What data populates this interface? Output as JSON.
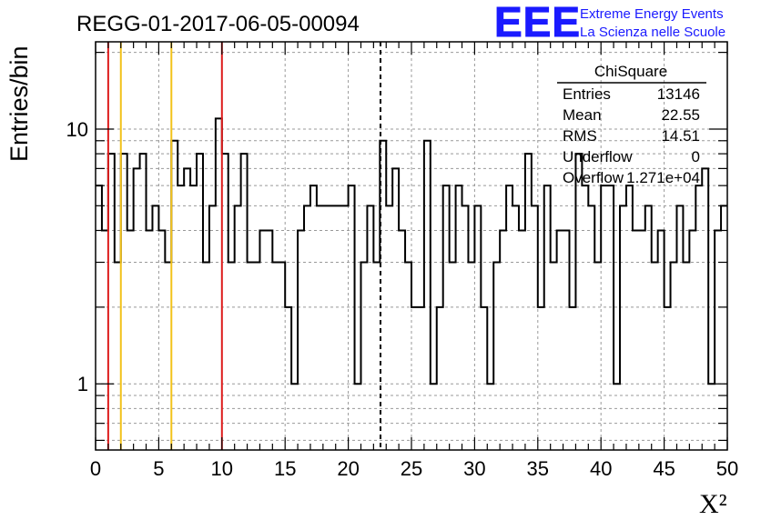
{
  "title": "REGG-01-2017-06-05-00094",
  "logo": {
    "text": "EEE",
    "line1": "Extreme Energy Events",
    "line2": "La Scienza nelle Scuole",
    "color": "#1a1aff"
  },
  "stats_box": {
    "name": "ChiSquare",
    "rows": [
      {
        "label": "Entries",
        "value": "13146"
      },
      {
        "label": "Mean",
        "value": "22.55"
      },
      {
        "label": "RMS",
        "value": "14.51"
      },
      {
        "label": "Underflow",
        "value": "0"
      },
      {
        "label": "Overflow",
        "value": "1.271e+04"
      }
    ]
  },
  "chart_data": {
    "type": "histogram",
    "title": "REGG-01-2017-06-05-00094",
    "xlabel": "X²",
    "ylabel": "Entries/bin",
    "xlim": [
      0,
      50
    ],
    "ylim": [
      0.55,
      22
    ],
    "y_scale": "log",
    "grid": true,
    "x_ticks": [
      "0",
      "5",
      "10",
      "15",
      "20",
      "25",
      "30",
      "35",
      "40",
      "45",
      "50"
    ],
    "y_ticks": [
      {
        "value": 1,
        "label": "1"
      },
      {
        "value": 10,
        "label": "10"
      }
    ],
    "bin_width": 0.5,
    "values": [
      6,
      4,
      8,
      3,
      8,
      4,
      7,
      8,
      4,
      5,
      4,
      3,
      9,
      6,
      7,
      6,
      8,
      3,
      5,
      11,
      8,
      3,
      5,
      8,
      3,
      3,
      4,
      4,
      3,
      3,
      2,
      1,
      4,
      5,
      6,
      5,
      5,
      5,
      5,
      5,
      6,
      1,
      3,
      5,
      3,
      9,
      5,
      7,
      4,
      3,
      2,
      2,
      9,
      1,
      2,
      6,
      3,
      6,
      5,
      3,
      5,
      2,
      1,
      3,
      4,
      6,
      5,
      4,
      8,
      5,
      2,
      6,
      3,
      4,
      4,
      2,
      8,
      6,
      5,
      3,
      6,
      6,
      1,
      5,
      6,
      4,
      4,
      5,
      3,
      4,
      2,
      3,
      5,
      3,
      4,
      6,
      7,
      1,
      4,
      5
    ],
    "vertical_lines": [
      {
        "x": 1,
        "color": "#dd1c1c",
        "style": "solid"
      },
      {
        "x": 2,
        "color": "#f2c21a",
        "style": "solid"
      },
      {
        "x": 6,
        "color": "#f2c21a",
        "style": "solid"
      },
      {
        "x": 10,
        "color": "#dd1c1c",
        "style": "solid"
      },
      {
        "x": 22.55,
        "color": "#000000",
        "style": "dashed"
      }
    ]
  }
}
